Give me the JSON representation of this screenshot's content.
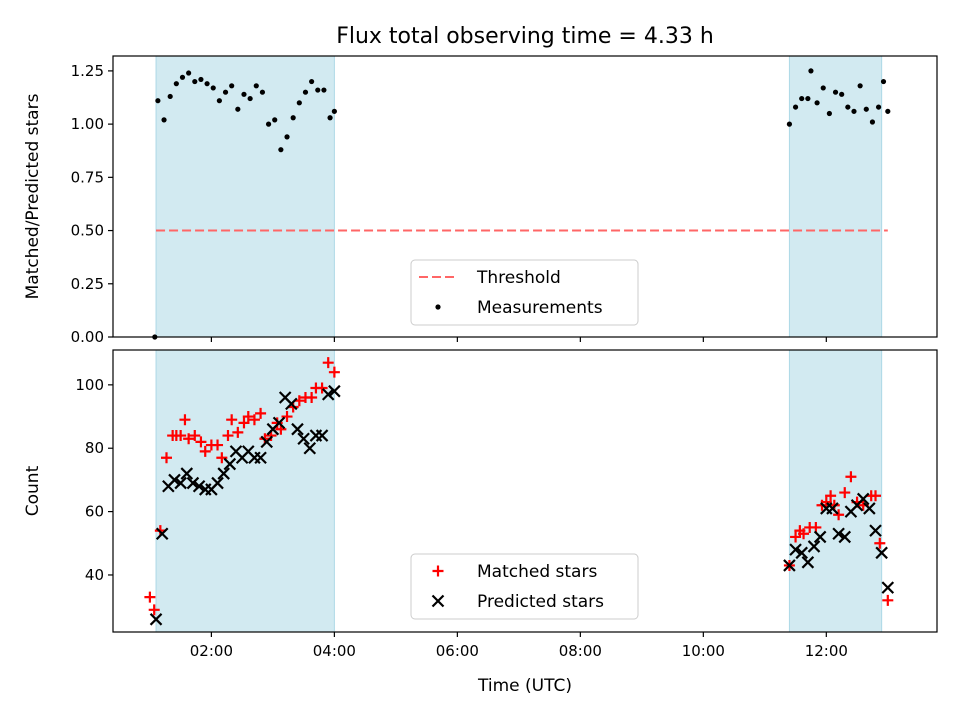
{
  "chart_data": [
    {
      "type": "scatter",
      "title": "Flux total observing time = 4.33 h",
      "xlabel": "",
      "ylabel": "Matched/Predicted stars",
      "xlim": [
        0.4,
        13.8
      ],
      "ylim": [
        0.0,
        1.32
      ],
      "yticks": [
        0.0,
        0.25,
        0.5,
        0.75,
        1.0,
        1.25
      ],
      "ytick_labels": [
        "0.00",
        "0.25",
        "0.50",
        "0.75",
        "1.00",
        "1.25"
      ],
      "xticks": [
        2,
        4,
        6,
        8,
        10,
        12
      ],
      "shaded_spans": [
        [
          1.1,
          4.0
        ],
        [
          11.4,
          12.9
        ]
      ],
      "span_color": "#add8e6",
      "threshold": {
        "name": "Threshold",
        "y": 0.5,
        "x_range": [
          1.1,
          13.0
        ],
        "color": "#ff6666"
      },
      "series": [
        {
          "name": "Measurements",
          "marker": "dot",
          "color": "#000000",
          "x": [
            1.08,
            1.13,
            1.23,
            1.33,
            1.43,
            1.53,
            1.63,
            1.73,
            1.83,
            1.93,
            2.03,
            2.13,
            2.23,
            2.33,
            2.43,
            2.53,
            2.63,
            2.73,
            2.83,
            2.93,
            3.03,
            3.13,
            3.23,
            3.33,
            3.43,
            3.53,
            3.63,
            3.73,
            3.83,
            3.93,
            4.0,
            11.4,
            11.5,
            11.6,
            11.7,
            11.75,
            11.85,
            11.95,
            12.05,
            12.15,
            12.25,
            12.35,
            12.45,
            12.55,
            12.65,
            12.75,
            12.85,
            12.93,
            13.0
          ],
          "y": [
            0.0,
            1.11,
            1.02,
            1.13,
            1.19,
            1.22,
            1.24,
            1.2,
            1.21,
            1.19,
            1.17,
            1.11,
            1.15,
            1.18,
            1.07,
            1.14,
            1.12,
            1.18,
            1.15,
            1.0,
            1.02,
            0.88,
            0.94,
            1.03,
            1.1,
            1.15,
            1.2,
            1.16,
            1.16,
            1.03,
            1.06,
            1.0,
            1.08,
            1.12,
            1.12,
            1.25,
            1.1,
            1.17,
            1.05,
            1.15,
            1.14,
            1.08,
            1.06,
            1.18,
            1.07,
            1.01,
            1.08,
            1.2,
            1.06
          ]
        }
      ],
      "legend": {
        "position": "bottom-center",
        "entries": [
          "Threshold",
          "Measurements"
        ]
      }
    },
    {
      "type": "scatter",
      "title": "",
      "xlabel": "Time (UTC)",
      "ylabel": "Count",
      "xlim": [
        0.4,
        13.8
      ],
      "ylim": [
        22,
        111
      ],
      "yticks": [
        40,
        60,
        80,
        100
      ],
      "ytick_labels": [
        "40",
        "60",
        "80",
        "100"
      ],
      "xticks": [
        2,
        4,
        6,
        8,
        10,
        12
      ],
      "xtick_labels": [
        "02:00",
        "04:00",
        "06:00",
        "08:00",
        "10:00",
        "12:00"
      ],
      "shaded_spans": [
        [
          1.1,
          4.0
        ],
        [
          11.4,
          12.9
        ]
      ],
      "span_color": "#add8e6",
      "series": [
        {
          "name": "Matched stars",
          "marker": "plus",
          "color": "#ff0000",
          "x": [
            1.0,
            1.07,
            1.17,
            1.27,
            1.37,
            1.43,
            1.5,
            1.57,
            1.63,
            1.73,
            1.83,
            1.9,
            2.0,
            2.1,
            2.17,
            2.27,
            2.33,
            2.43,
            2.53,
            2.6,
            2.7,
            2.8,
            2.87,
            2.97,
            3.07,
            3.13,
            3.23,
            3.33,
            3.43,
            3.53,
            3.63,
            3.7,
            3.8,
            3.9,
            4.0,
            11.4,
            11.5,
            11.57,
            11.63,
            11.73,
            11.83,
            11.93,
            12.0,
            12.07,
            12.13,
            12.2,
            12.3,
            12.4,
            12.5,
            12.6,
            12.73,
            12.8,
            12.87,
            13.0
          ],
          "y": [
            33,
            29,
            54,
            77,
            84,
            84,
            84,
            89,
            83,
            84,
            82,
            79,
            81,
            81,
            77,
            84,
            89,
            85,
            88,
            90,
            89,
            91,
            83,
            84,
            88,
            86,
            90,
            93,
            95,
            96,
            96,
            99,
            99,
            107,
            104,
            43,
            52,
            54,
            53,
            55,
            55,
            62,
            63,
            65,
            62,
            59,
            66,
            71,
            63,
            62,
            65,
            65,
            50,
            32
          ]
        },
        {
          "name": "Predicted stars",
          "marker": "x",
          "color": "#000000",
          "x": [
            1.1,
            1.2,
            1.3,
            1.4,
            1.5,
            1.6,
            1.7,
            1.8,
            1.9,
            2.0,
            2.1,
            2.2,
            2.3,
            2.4,
            2.5,
            2.6,
            2.7,
            2.8,
            2.9,
            3.0,
            3.1,
            3.2,
            3.3,
            3.4,
            3.5,
            3.6,
            3.7,
            3.8,
            3.9,
            4.0,
            11.4,
            11.5,
            11.6,
            11.7,
            11.8,
            11.9,
            12.0,
            12.1,
            12.2,
            12.3,
            12.4,
            12.5,
            12.6,
            12.7,
            12.8,
            12.9,
            13.0
          ],
          "y": [
            26,
            53,
            68,
            70,
            69,
            72,
            69,
            68,
            67,
            67,
            69,
            72,
            75,
            79,
            77,
            79,
            77,
            77,
            82,
            86,
            88,
            96,
            94,
            86,
            83,
            80,
            84,
            84,
            97,
            98,
            43,
            48,
            47,
            44,
            49,
            52,
            61,
            61,
            53,
            52,
            60,
            62,
            64,
            61,
            54,
            47,
            36
          ]
        }
      ],
      "legend": {
        "position": "bottom-center",
        "entries": [
          "Matched stars",
          "Predicted stars"
        ]
      }
    }
  ]
}
